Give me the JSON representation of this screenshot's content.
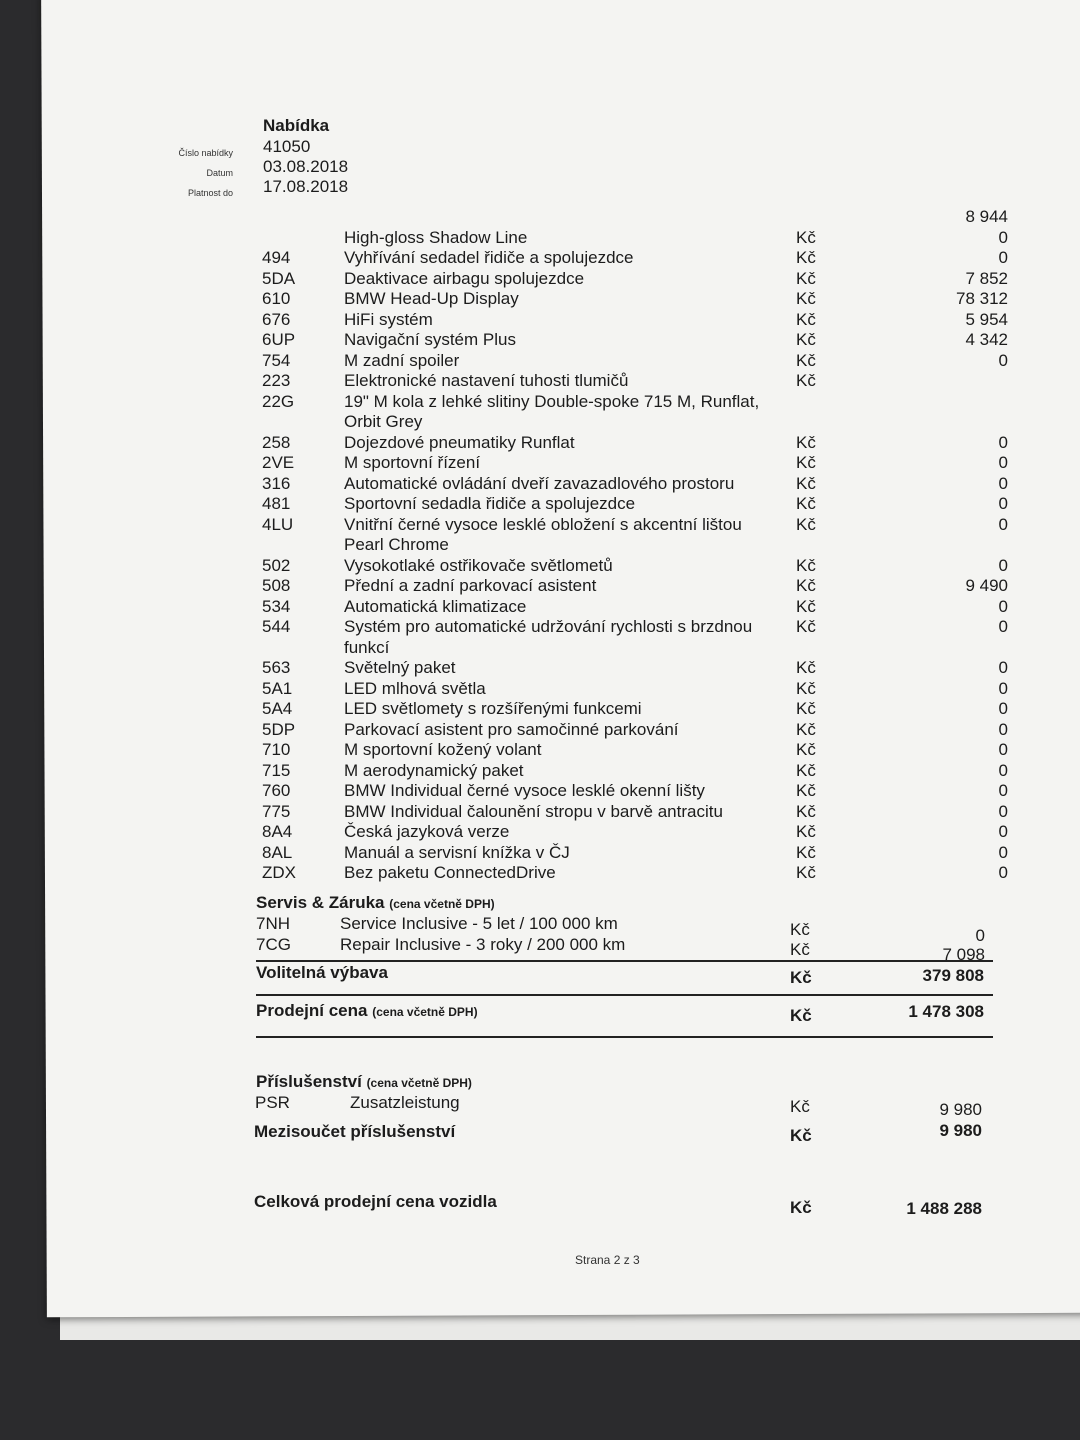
{
  "header": {
    "title": "Nabídka",
    "offer_number_label": "Číslo nabídky",
    "offer_number": "41050",
    "date_label": "Datum",
    "date": "03.08.2018",
    "valid_until_label": "Platnost do",
    "valid_until": "17.08.2018"
  },
  "lines": [
    {
      "code": "",
      "desc": "",
      "cur": "",
      "price": "8 944"
    },
    {
      "code": "",
      "desc": "High-gloss Shadow Line",
      "cur": "Kč",
      "price": "0"
    },
    {
      "code": "494",
      "desc": "Vyhřívání sedadel řidiče a spolujezdce",
      "cur": "Kč",
      "price": "0"
    },
    {
      "code": "5DA",
      "desc": "Deaktivace airbagu spolujezdce",
      "cur": "Kč",
      "price": "7 852"
    },
    {
      "code": "610",
      "desc": "BMW Head-Up Display",
      "cur": "Kč",
      "price": "78 312"
    },
    {
      "code": "676",
      "desc": "HiFi systém",
      "cur": "Kč",
      "price": "5 954"
    },
    {
      "code": "6UP",
      "desc": "Navigační systém Plus",
      "cur": "Kč",
      "price": "4 342"
    },
    {
      "code": "754",
      "desc": "M zadní spoiler",
      "cur": "Kč",
      "price": "0"
    },
    {
      "code": "223",
      "desc": "Elektronické nastavení tuhosti tlumičů",
      "cur": "Kč",
      "price": ""
    },
    {
      "code": "22G",
      "desc": "19\" M kola z lehké slitiny Double-spoke 715 M, Runflat,",
      "cur": "",
      "price": ""
    },
    {
      "code": "",
      "desc": "Orbit Grey",
      "cur": "",
      "price": ""
    },
    {
      "code": "258",
      "desc": "Dojezdové pneumatiky Runflat",
      "cur": "Kč",
      "price": "0"
    },
    {
      "code": "2VE",
      "desc": "M sportovní řízení",
      "cur": "Kč",
      "price": "0"
    },
    {
      "code": "316",
      "desc": "Automatické ovládání dveří zavazadlového prostoru",
      "cur": "Kč",
      "price": "0"
    },
    {
      "code": "481",
      "desc": "Sportovní sedadla řidiče a spolujezdce",
      "cur": "Kč",
      "price": "0"
    },
    {
      "code": "4LU",
      "desc": "Vnitřní černé vysoce lesklé obložení s akcentní lištou",
      "cur": "Kč",
      "price": "0"
    },
    {
      "code": "",
      "desc": "Pearl Chrome",
      "cur": "",
      "price": ""
    },
    {
      "code": "502",
      "desc": "Vysokotlaké ostřikovače světlometů",
      "cur": "Kč",
      "price": "0"
    },
    {
      "code": "508",
      "desc": "Přední a zadní parkovací asistent",
      "cur": "Kč",
      "price": "9 490"
    },
    {
      "code": "534",
      "desc": "Automatická klimatizace",
      "cur": "Kč",
      "price": "0"
    },
    {
      "code": "544",
      "desc": "Systém pro automatické udržování rychlosti s brzdnou",
      "cur": "Kč",
      "price": "0"
    },
    {
      "code": "",
      "desc": "funkcí",
      "cur": "",
      "price": ""
    },
    {
      "code": "563",
      "desc": "Světelný paket",
      "cur": "Kč",
      "price": "0"
    },
    {
      "code": "5A1",
      "desc": "LED mlhová světla",
      "cur": "Kč",
      "price": "0"
    },
    {
      "code": "5A4",
      "desc": "LED světlomety s rozšířenými funkcemi",
      "cur": "Kč",
      "price": "0"
    },
    {
      "code": "5DP",
      "desc": "Parkovací asistent pro samočinné parkování",
      "cur": "Kč",
      "price": "0"
    },
    {
      "code": "710",
      "desc": "M sportovní kožený volant",
      "cur": "Kč",
      "price": "0"
    },
    {
      "code": "715",
      "desc": "M aerodynamický paket",
      "cur": "Kč",
      "price": "0"
    },
    {
      "code": "760",
      "desc": "BMW Individual černé vysoce lesklé okenní lišty",
      "cur": "Kč",
      "price": "0"
    },
    {
      "code": "775",
      "desc": "BMW Individual čalounění stropu v barvě antracitu",
      "cur": "Kč",
      "price": "0"
    },
    {
      "code": "8A4",
      "desc": "Česká jazyková verze",
      "cur": "Kč",
      "price": "0"
    },
    {
      "code": "8AL",
      "desc": "Manuál a servisní knížka v ČJ",
      "cur": "Kč",
      "price": "0"
    },
    {
      "code": "ZDX",
      "desc": "Bez paketu ConnectedDrive",
      "cur": "Kč",
      "price": "0"
    }
  ],
  "service": {
    "title": "Servis & Záruka",
    "note": "(cena včetně DPH)",
    "items": [
      {
        "code": "7NH",
        "desc": "Service Inclusive - 5 let / 100 000 km",
        "cur": "Kč",
        "price": "0"
      },
      {
        "code": "7CG",
        "desc": "Repair Inclusive - 3 roky / 200 000 km",
        "cur": "Kč",
        "price": "7 098"
      }
    ]
  },
  "optional": {
    "label": "Volitelná výbava",
    "cur": "Kč",
    "price": "379 808"
  },
  "sale": {
    "label": "Prodejní cena",
    "note": "(cena včetně DPH)",
    "cur": "Kč",
    "price": "1 478 308"
  },
  "accessories": {
    "title": "Příslušenství",
    "note": "(cena včetně DPH)",
    "item": {
      "code": "PSR",
      "desc": "Zusatzleistung",
      "cur": "Kč",
      "price": "9 980"
    },
    "subtotal": {
      "label": "Mezisoučet příslušenství",
      "cur": "Kč",
      "price": "9 980"
    }
  },
  "total": {
    "label": "Celková prodejní cena vozidla",
    "cur": "Kč",
    "price": "1 488 288"
  },
  "footer": {
    "page": "Strana 2 z 3"
  }
}
